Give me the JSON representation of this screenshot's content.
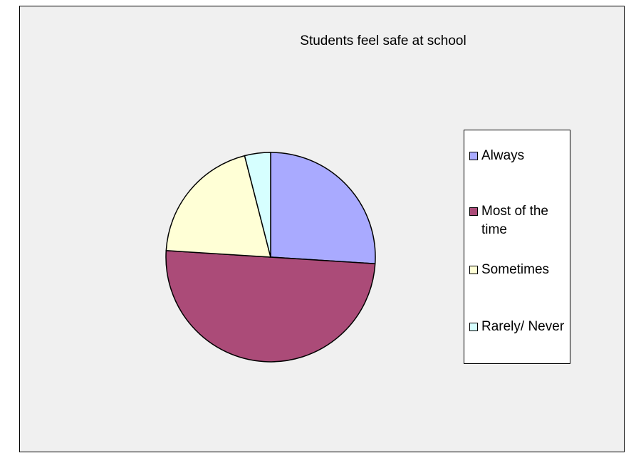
{
  "chart_data": {
    "type": "pie",
    "title": "Students feel safe at school",
    "categories": [
      "Always",
      "Most of the time",
      "Sometimes",
      "Rarely/ Never"
    ],
    "values": [
      26,
      50,
      20,
      4
    ],
    "colors": [
      "#a9aaff",
      "#ab4b78",
      "#ffffd6",
      "#d6ffff"
    ],
    "legend_position": "right",
    "grid": false
  }
}
